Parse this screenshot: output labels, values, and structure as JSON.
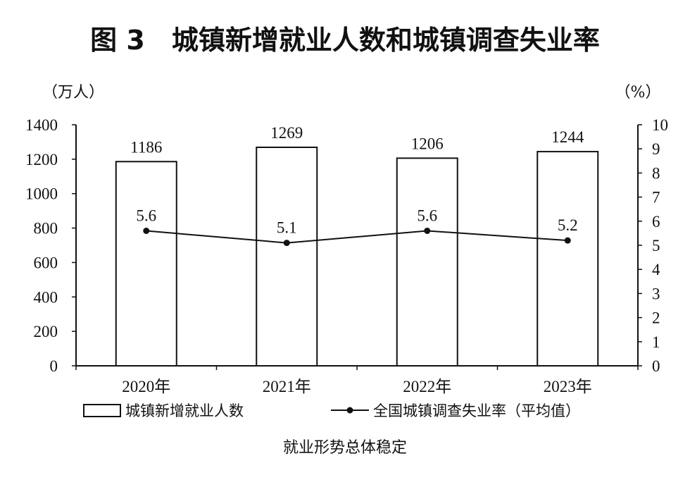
{
  "figure_title": "图 3　城镇新增就业人数和城镇调查失业率",
  "caption": "就业形势总体稳定",
  "chart_data": {
    "type": "bar",
    "title": "图 3　城镇新增就业人数和城镇调查失业率",
    "categories": [
      "2020年",
      "2021年",
      "2022年",
      "2023年"
    ],
    "left_axis": {
      "unit_label": "（万人）",
      "range": [
        0,
        1400
      ],
      "ticks": [
        0,
        200,
        400,
        600,
        800,
        1000,
        1200,
        1400
      ]
    },
    "right_axis": {
      "unit_label": "（%）",
      "range": [
        0,
        10
      ],
      "ticks": [
        0,
        1,
        2,
        3,
        4,
        5,
        6,
        7,
        8,
        9,
        10
      ]
    },
    "series": [
      {
        "name": "城镇新增就业人数",
        "type": "bar",
        "axis": "left",
        "values": [
          1186,
          1269,
          1206,
          1244
        ],
        "labels": [
          "1186",
          "1269",
          "1206",
          "1244"
        ]
      },
      {
        "name": "全国城镇调查失业率（平均值）",
        "type": "line",
        "axis": "right",
        "values": [
          5.6,
          5.1,
          5.6,
          5.2
        ],
        "labels": [
          "5.6",
          "5.1",
          "5.6",
          "5.2"
        ]
      }
    ],
    "grid": false,
    "legend_position": "bottom"
  }
}
